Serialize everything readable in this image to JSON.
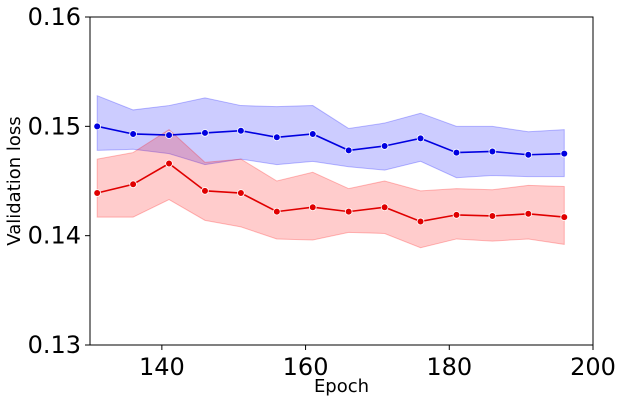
{
  "chart_data": {
    "type": "line",
    "title": "",
    "xlabel": "Epoch",
    "ylabel": "Validation loss",
    "xlim": [
      130,
      200
    ],
    "ylim": [
      0.13,
      0.16
    ],
    "x_ticks": [
      140,
      160,
      180,
      200
    ],
    "x_tick_labels": [
      "140",
      "160",
      "180",
      "200"
    ],
    "y_ticks": [
      0.13,
      0.14,
      0.15,
      0.16
    ],
    "y_tick_labels": [
      "0.13",
      "0.14",
      "0.15",
      "0.16"
    ],
    "grid": false,
    "legend": "none",
    "series": [
      {
        "color": "#0000e0",
        "band_color": "#0000ff",
        "x": [
          131,
          136,
          141,
          146,
          151,
          156,
          161,
          166,
          171,
          176,
          181,
          186,
          191,
          196
        ],
        "y": [
          0.15,
          0.1493,
          0.1492,
          0.1494,
          0.1496,
          0.149,
          0.1493,
          0.1478,
          0.1482,
          0.1489,
          0.1476,
          0.1477,
          0.1474,
          0.1475
        ],
        "lower": [
          0.1478,
          0.1479,
          0.1475,
          0.1465,
          0.147,
          0.1465,
          0.1468,
          0.1463,
          0.146,
          0.1468,
          0.1453,
          0.1455,
          0.1454,
          0.1454
        ],
        "upper": [
          0.1528,
          0.1515,
          0.1519,
          0.1526,
          0.1519,
          0.1518,
          0.1519,
          0.1498,
          0.1503,
          0.1512,
          0.15,
          0.15,
          0.1495,
          0.1497
        ]
      },
      {
        "color": "#e00000",
        "band_color": "#ff0000",
        "x": [
          131,
          136,
          141,
          146,
          151,
          156,
          161,
          166,
          171,
          176,
          181,
          186,
          191,
          196
        ],
        "y": [
          0.1439,
          0.1447,
          0.1466,
          0.1441,
          0.1439,
          0.1422,
          0.1426,
          0.1422,
          0.1426,
          0.1413,
          0.1419,
          0.1418,
          0.142,
          0.1417
        ],
        "lower": [
          0.1417,
          0.1417,
          0.1433,
          0.1414,
          0.1408,
          0.1397,
          0.1396,
          0.1403,
          0.1402,
          0.1389,
          0.1397,
          0.1395,
          0.1397,
          0.1392
        ],
        "upper": [
          0.147,
          0.1476,
          0.1497,
          0.1467,
          0.147,
          0.145,
          0.1458,
          0.1443,
          0.145,
          0.1441,
          0.1443,
          0.1442,
          0.1446,
          0.1445
        ]
      }
    ]
  }
}
